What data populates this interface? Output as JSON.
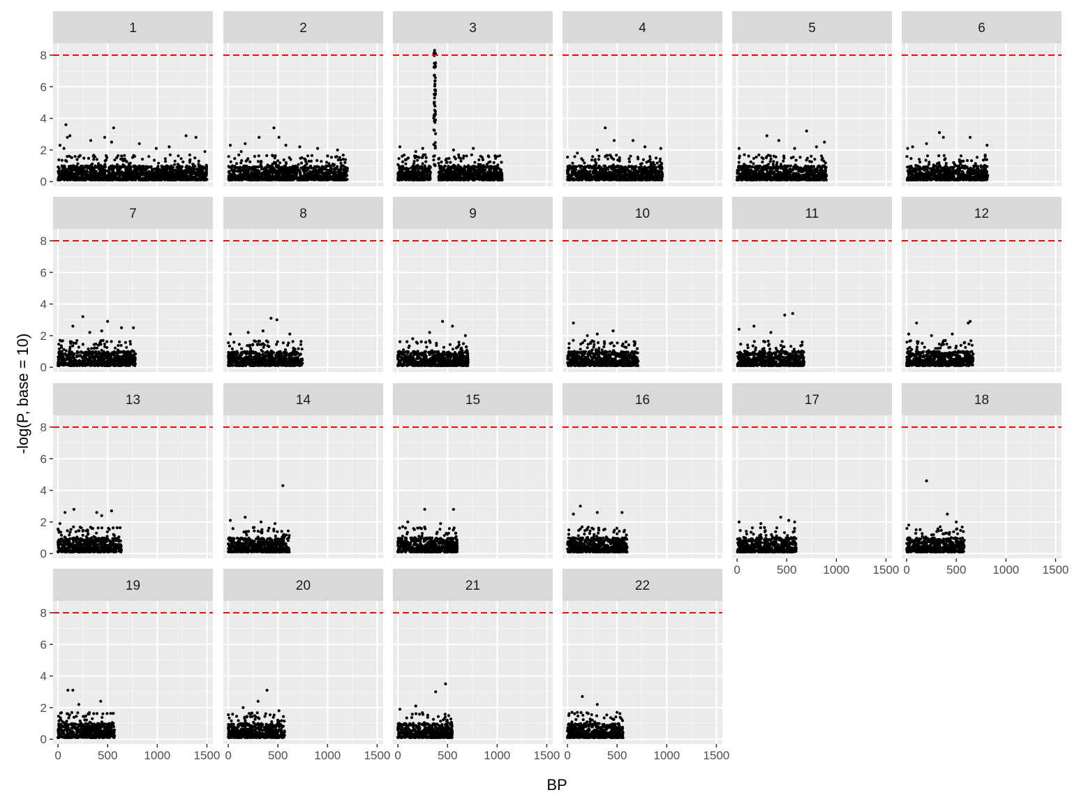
{
  "chart_data": {
    "type": "scatter",
    "facet": "chromosome",
    "xlabel": "BP",
    "ylabel": "-log(P, base = 10)",
    "xlim": [
      -50,
      1560
    ],
    "ylim": [
      -0.3,
      8.75
    ],
    "x_ticks": [
      0,
      500,
      1000,
      1500
    ],
    "x_tick_labels": [
      "0",
      "500",
      "1000",
      "1500"
    ],
    "y_ticks": [
      0,
      2,
      4,
      6,
      8
    ],
    "y_tick_labels": [
      "0",
      "2",
      "4",
      "6",
      "8"
    ],
    "threshold": {
      "value": 8,
      "color": "#ff0000",
      "style": "dashed"
    },
    "grid": true,
    "legend": "none",
    "point_color": "#000000",
    "panel_background": "#ebebeb",
    "strip_background": "#d9d9d9",
    "panels": [
      {
        "label": "1",
        "bp_max": 1500,
        "baseline_max": 0.9,
        "tops": [
          [
            20,
            2.3
          ],
          [
            60,
            2.1
          ],
          [
            80,
            3.6
          ],
          [
            95,
            2.8
          ],
          [
            120,
            2.9
          ],
          [
            330,
            2.6
          ],
          [
            470,
            2.8
          ],
          [
            540,
            2.5
          ],
          [
            560,
            3.4
          ],
          [
            820,
            2.4
          ],
          [
            990,
            2.1
          ],
          [
            1120,
            2.2
          ],
          [
            1290,
            2.9
          ],
          [
            1390,
            2.8
          ],
          [
            1480,
            1.9
          ]
        ]
      },
      {
        "label": "2",
        "bp_max": 1200,
        "baseline_max": 0.9,
        "tops": [
          [
            20,
            2.3
          ],
          [
            130,
            1.9
          ],
          [
            170,
            2.4
          ],
          [
            310,
            2.8
          ],
          [
            460,
            3.4
          ],
          [
            510,
            2.8
          ],
          [
            580,
            2.3
          ],
          [
            720,
            2.2
          ],
          [
            900,
            2.1
          ],
          [
            1100,
            2.0
          ]
        ]
      },
      {
        "label": "3",
        "bp_max": 1050,
        "baseline_max": 0.9,
        "gap": [
          330,
          410
        ],
        "peak": {
          "center": 370,
          "height": 8.3
        },
        "tops": [
          [
            20,
            2.2
          ],
          [
            180,
            1.9
          ],
          [
            250,
            2.1
          ],
          [
            560,
            2.0
          ],
          [
            760,
            2.1
          ],
          [
            980,
            1.6
          ]
        ]
      },
      {
        "label": "4",
        "bp_max": 960,
        "baseline_max": 0.9,
        "tops": [
          [
            100,
            1.8
          ],
          [
            300,
            2.0
          ],
          [
            380,
            3.4
          ],
          [
            470,
            2.6
          ],
          [
            660,
            2.6
          ],
          [
            780,
            2.2
          ],
          [
            940,
            2.1
          ]
        ]
      },
      {
        "label": "5",
        "bp_max": 900,
        "baseline_max": 0.9,
        "tops": [
          [
            20,
            2.1
          ],
          [
            300,
            2.9
          ],
          [
            420,
            2.6
          ],
          [
            580,
            2.1
          ],
          [
            700,
            3.2
          ],
          [
            800,
            2.2
          ],
          [
            880,
            2.5
          ]
        ]
      },
      {
        "label": "6",
        "bp_max": 820,
        "baseline_max": 0.9,
        "tops": [
          [
            10,
            2.1
          ],
          [
            60,
            2.2
          ],
          [
            200,
            2.4
          ],
          [
            330,
            3.1
          ],
          [
            370,
            2.8
          ],
          [
            640,
            2.8
          ],
          [
            810,
            2.3
          ]
        ]
      },
      {
        "label": "7",
        "bp_max": 780,
        "baseline_max": 0.9,
        "tops": [
          [
            20,
            1.7
          ],
          [
            150,
            2.6
          ],
          [
            250,
            3.2
          ],
          [
            320,
            2.2
          ],
          [
            440,
            2.3
          ],
          [
            500,
            2.9
          ],
          [
            640,
            2.5
          ],
          [
            760,
            2.5
          ]
        ]
      },
      {
        "label": "8",
        "bp_max": 750,
        "baseline_max": 0.9,
        "tops": [
          [
            20,
            2.1
          ],
          [
            200,
            2.2
          ],
          [
            350,
            2.3
          ],
          [
            430,
            3.1
          ],
          [
            490,
            3.0
          ],
          [
            620,
            2.1
          ]
        ]
      },
      {
        "label": "9",
        "bp_max": 710,
        "baseline_max": 0.9,
        "tops": [
          [
            150,
            1.8
          ],
          [
            320,
            2.2
          ],
          [
            450,
            2.9
          ],
          [
            550,
            2.6
          ],
          [
            680,
            2.0
          ]
        ]
      },
      {
        "label": "10",
        "bp_max": 710,
        "baseline_max": 0.9,
        "tops": [
          [
            60,
            2.8
          ],
          [
            200,
            2.0
          ],
          [
            300,
            2.1
          ],
          [
            460,
            2.3
          ],
          [
            680,
            1.6
          ]
        ]
      },
      {
        "label": "11",
        "bp_max": 680,
        "baseline_max": 0.9,
        "tops": [
          [
            20,
            2.4
          ],
          [
            170,
            2.6
          ],
          [
            340,
            2.2
          ],
          [
            480,
            3.3
          ],
          [
            560,
            3.4
          ]
        ]
      },
      {
        "label": "12",
        "bp_max": 670,
        "baseline_max": 0.9,
        "tops": [
          [
            20,
            2.1
          ],
          [
            100,
            2.8
          ],
          [
            250,
            2.0
          ],
          [
            460,
            2.1
          ],
          [
            620,
            2.8
          ],
          [
            640,
            2.9
          ]
        ]
      },
      {
        "label": "13",
        "bp_max": 640,
        "baseline_max": 0.9,
        "tops": [
          [
            20,
            1.9
          ],
          [
            70,
            2.6
          ],
          [
            160,
            2.8
          ],
          [
            390,
            2.6
          ],
          [
            440,
            2.4
          ],
          [
            540,
            2.7
          ]
        ]
      },
      {
        "label": "14",
        "bp_max": 620,
        "baseline_max": 0.9,
        "tops": [
          [
            20,
            2.1
          ],
          [
            170,
            2.3
          ],
          [
            330,
            2.0
          ],
          [
            470,
            1.9
          ],
          [
            550,
            4.3
          ]
        ]
      },
      {
        "label": "15",
        "bp_max": 600,
        "baseline_max": 0.9,
        "tops": [
          [
            100,
            2.0
          ],
          [
            270,
            2.8
          ],
          [
            430,
            1.9
          ],
          [
            560,
            2.8
          ]
        ]
      },
      {
        "label": "16",
        "bp_max": 600,
        "baseline_max": 0.9,
        "tops": [
          [
            60,
            2.5
          ],
          [
            130,
            3.0
          ],
          [
            300,
            2.6
          ],
          [
            550,
            2.6
          ]
        ]
      },
      {
        "label": "17",
        "bp_max": 600,
        "baseline_max": 0.9,
        "tops": [
          [
            20,
            2.0
          ],
          [
            240,
            1.9
          ],
          [
            440,
            2.3
          ],
          [
            520,
            2.1
          ],
          [
            580,
            2.0
          ]
        ]
      },
      {
        "label": "18",
        "bp_max": 580,
        "baseline_max": 0.9,
        "tops": [
          [
            20,
            1.8
          ],
          [
            200,
            4.6
          ],
          [
            410,
            2.5
          ],
          [
            500,
            2.0
          ]
        ]
      },
      {
        "label": "19",
        "bp_max": 570,
        "baseline_max": 0.9,
        "tops": [
          [
            100,
            3.1
          ],
          [
            150,
            3.1
          ],
          [
            210,
            2.2
          ],
          [
            430,
            2.4
          ]
        ]
      },
      {
        "label": "20",
        "bp_max": 570,
        "baseline_max": 0.9,
        "tops": [
          [
            150,
            2.0
          ],
          [
            300,
            2.4
          ],
          [
            390,
            3.1
          ],
          [
            510,
            1.8
          ]
        ]
      },
      {
        "label": "21",
        "bp_max": 550,
        "baseline_max": 0.9,
        "tops": [
          [
            20,
            1.9
          ],
          [
            180,
            2.1
          ],
          [
            380,
            3.0
          ],
          [
            480,
            3.5
          ]
        ]
      },
      {
        "label": "22",
        "bp_max": 560,
        "baseline_max": 0.9,
        "tops": [
          [
            100,
            1.7
          ],
          [
            150,
            2.7
          ],
          [
            300,
            2.2
          ],
          [
            500,
            1.7
          ]
        ]
      }
    ]
  }
}
